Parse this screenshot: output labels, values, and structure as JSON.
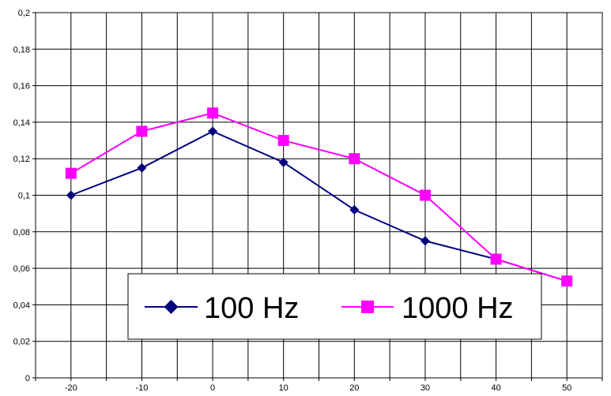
{
  "chart_data": {
    "type": "line",
    "title": "",
    "xlabel": "",
    "ylabel": "",
    "x": [
      -20,
      -10,
      0,
      10,
      20,
      30,
      40,
      50
    ],
    "x_tick_labels": [
      "-20",
      "-10",
      "0",
      "10",
      "20",
      "30",
      "40",
      "50"
    ],
    "y_tick_labels": [
      "0",
      "0,02",
      "0,04",
      "0,06",
      "0,08",
      "0,1",
      "0,12",
      "0,14",
      "0,16",
      "0,18",
      "0,2"
    ],
    "ylim": [
      0,
      0.2
    ],
    "xlim": [
      -25,
      55
    ],
    "grid": true,
    "legend_position": "bottom-center",
    "series": [
      {
        "name": "100 Hz",
        "color": "#000080",
        "marker": "diamond",
        "values": [
          0.1,
          0.115,
          0.135,
          0.118,
          0.092,
          0.075,
          0.065,
          0.053
        ]
      },
      {
        "name": "1000 Hz",
        "color": "#FF00FF",
        "marker": "square",
        "values": [
          0.112,
          0.135,
          0.145,
          0.13,
          0.12,
          0.1,
          0.065,
          0.053
        ]
      }
    ]
  }
}
